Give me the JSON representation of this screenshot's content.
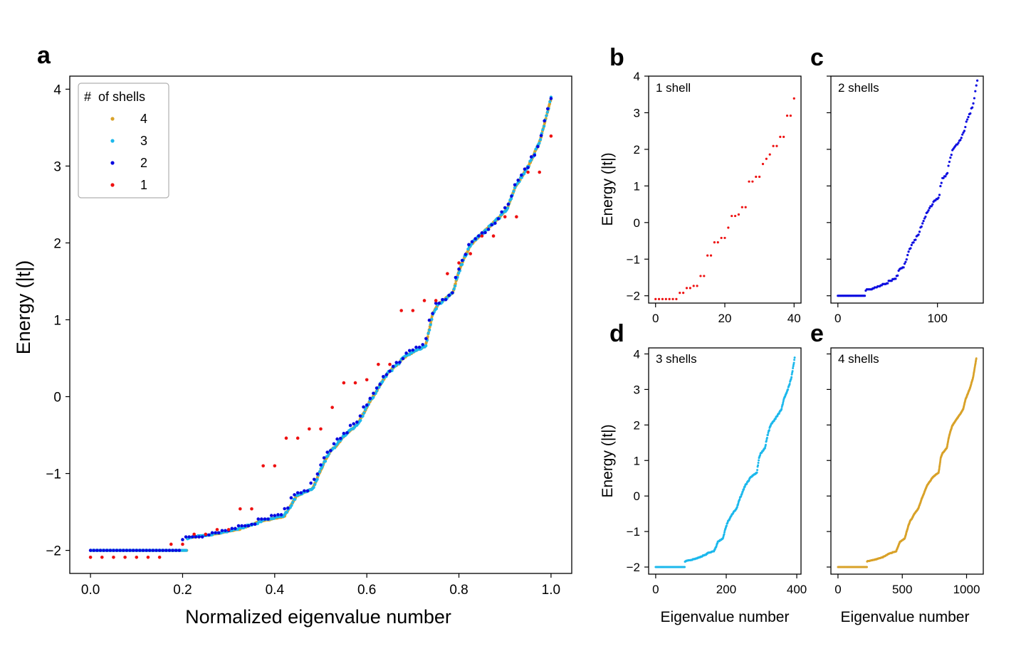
{
  "figure": {
    "panel_letters": {
      "a": "a",
      "b": "b",
      "c": "c",
      "d": "d",
      "e": "e"
    }
  },
  "colors": {
    "shell1": "#ee1111",
    "shell2": "#0a0ae0",
    "shell3": "#1cb8ec",
    "shell4": "#d9a22a"
  },
  "chart_data": [
    {
      "id": "a",
      "type": "scatter",
      "title": "",
      "xlabel": "Normalized eigenvalue number",
      "ylabel": "Energy (|t|)",
      "xlim": [
        -0.045,
        1.045
      ],
      "ylim": [
        -2.3,
        4.17
      ],
      "xticks": [
        0.0,
        0.2,
        0.4,
        0.6,
        0.8,
        1.0
      ],
      "xtick_labels": [
        "0.0",
        "0.2",
        "0.4",
        "0.6",
        "0.8",
        "1.0"
      ],
      "yticks": [
        -2,
        -1,
        0,
        1,
        2,
        3,
        4
      ],
      "ytick_labels": [
        "−2",
        "−1",
        "0",
        "1",
        "2",
        "3",
        "4"
      ],
      "legend": {
        "title": "#  of shells",
        "position": "top-left",
        "entries": [
          {
            "label": "4",
            "series": "4 shells"
          },
          {
            "label": "3",
            "series": "3 shells"
          },
          {
            "label": "2",
            "series": "2 shells"
          },
          {
            "label": "1",
            "series": "1 shell"
          }
        ]
      },
      "series": [
        {
          "name": "4 shells",
          "color_key": "shell4",
          "n": 1077,
          "normalized": true
        },
        {
          "name": "3 shells",
          "color_key": "shell3",
          "n": 395,
          "normalized": true
        },
        {
          "name": "2 shells",
          "color_key": "shell2",
          "n": 141,
          "normalized": true
        },
        {
          "name": "1 shell",
          "color_key": "shell1",
          "n": 41,
          "normalized": true
        }
      ]
    },
    {
      "id": "b",
      "type": "scatter",
      "annotation": "1 shell",
      "xlabel": "",
      "ylabel": "Energy (|t|)",
      "xlim": [
        -2,
        42
      ],
      "ylim": [
        -2.2,
        4.0
      ],
      "xticks": [
        0,
        20,
        40
      ],
      "xtick_labels": [
        "0",
        "20",
        "40"
      ],
      "yticks": [
        -2,
        -1,
        0,
        1,
        2,
        3,
        4
      ],
      "ytick_labels": [
        "−2",
        "−1",
        "0",
        "1",
        "2",
        "3",
        "4"
      ],
      "series": [
        {
          "name": "1 shell",
          "color_key": "shell1",
          "n": 41
        }
      ]
    },
    {
      "id": "c",
      "type": "scatter",
      "annotation": "2 shells",
      "xlabel": "",
      "ylabel": "",
      "xlim": [
        -7,
        146
      ],
      "ylim": [
        -2.2,
        4.0
      ],
      "xticks": [
        0,
        100
      ],
      "xtick_labels": [
        "0",
        "100"
      ],
      "yticks": [
        -2,
        -1,
        0,
        1,
        2,
        3,
        4
      ],
      "ytick_labels": [
        "",
        "",
        "",
        "",
        "",
        "",
        ""
      ],
      "series": [
        {
          "name": "2 shells",
          "color_key": "shell2",
          "n": 141
        }
      ]
    },
    {
      "id": "d",
      "type": "scatter",
      "annotation": "3 shells",
      "xlabel": "Eigenvalue number",
      "ylabel": "Energy (|t|)",
      "xlim": [
        -20,
        412
      ],
      "ylim": [
        -2.2,
        4.17
      ],
      "xticks": [
        0,
        200,
        400
      ],
      "xtick_labels": [
        "0",
        "200",
        "400"
      ],
      "yticks": [
        -2,
        -1,
        0,
        1,
        2,
        3,
        4
      ],
      "ytick_labels": [
        "−2",
        "−1",
        "0",
        "1",
        "2",
        "3",
        "4"
      ],
      "series": [
        {
          "name": "3 shells",
          "color_key": "shell3",
          "n": 395
        }
      ]
    },
    {
      "id": "e",
      "type": "scatter",
      "annotation": "4 shells",
      "xlabel": "Eigenvalue number",
      "ylabel": "",
      "xlim": [
        -55,
        1130
      ],
      "ylim": [
        -2.2,
        4.17
      ],
      "xticks": [
        0,
        500,
        1000
      ],
      "xtick_labels": [
        "0",
        "500",
        "1000"
      ],
      "yticks": [
        -2,
        -1,
        0,
        1,
        2,
        3,
        4
      ],
      "ytick_labels": [
        "",
        "",
        "",
        "",
        "",
        "",
        ""
      ],
      "series": [
        {
          "name": "4 shells",
          "color_key": "shell4",
          "n": 1077
        }
      ]
    }
  ],
  "spectrum": {
    "flat_energy": -2.0,
    "flat_fraction": [
      0.2,
      0.2,
      0.21,
      0.21
    ],
    "knots_u": [
      0.0,
      0.04,
      0.09,
      0.14,
      0.2,
      0.235,
      0.265,
      0.3,
      0.345,
      0.36,
      0.38,
      0.395,
      0.41,
      0.43,
      0.47,
      0.5,
      0.55,
      0.6,
      0.63,
      0.655,
      0.675,
      0.69,
      0.73,
      0.745,
      0.76,
      0.78,
      0.8,
      0.83,
      0.86,
      0.88,
      0.9,
      0.94,
      0.97,
      1.0
    ],
    "knots_e": [
      -1.84,
      -1.82,
      -1.78,
      -1.73,
      -1.63,
      -1.59,
      -1.57,
      -1.3,
      -1.2,
      -1.03,
      -0.82,
      -0.7,
      -0.64,
      -0.52,
      -0.35,
      -0.08,
      0.3,
      0.52,
      0.6,
      0.65,
      1.08,
      1.2,
      1.35,
      1.6,
      1.79,
      1.98,
      2.07,
      2.21,
      2.34,
      2.45,
      2.71,
      3.02,
      3.33,
      3.88
    ],
    "shell1_energies": [
      -2.09,
      -2.09,
      -2.09,
      -2.09,
      -2.09,
      -2.09,
      -2.09,
      -1.92,
      -1.92,
      -1.79,
      -1.79,
      -1.73,
      -1.73,
      -1.46,
      -1.46,
      -0.9,
      -0.9,
      -0.54,
      -0.54,
      -0.42,
      -0.42,
      -0.14,
      0.18,
      0.18,
      0.22,
      0.42,
      0.42,
      1.12,
      1.12,
      1.25,
      1.25,
      1.6,
      1.74,
      1.86,
      2.09,
      2.09,
      2.34,
      2.34,
      2.92,
      2.92,
      3.39
    ]
  }
}
